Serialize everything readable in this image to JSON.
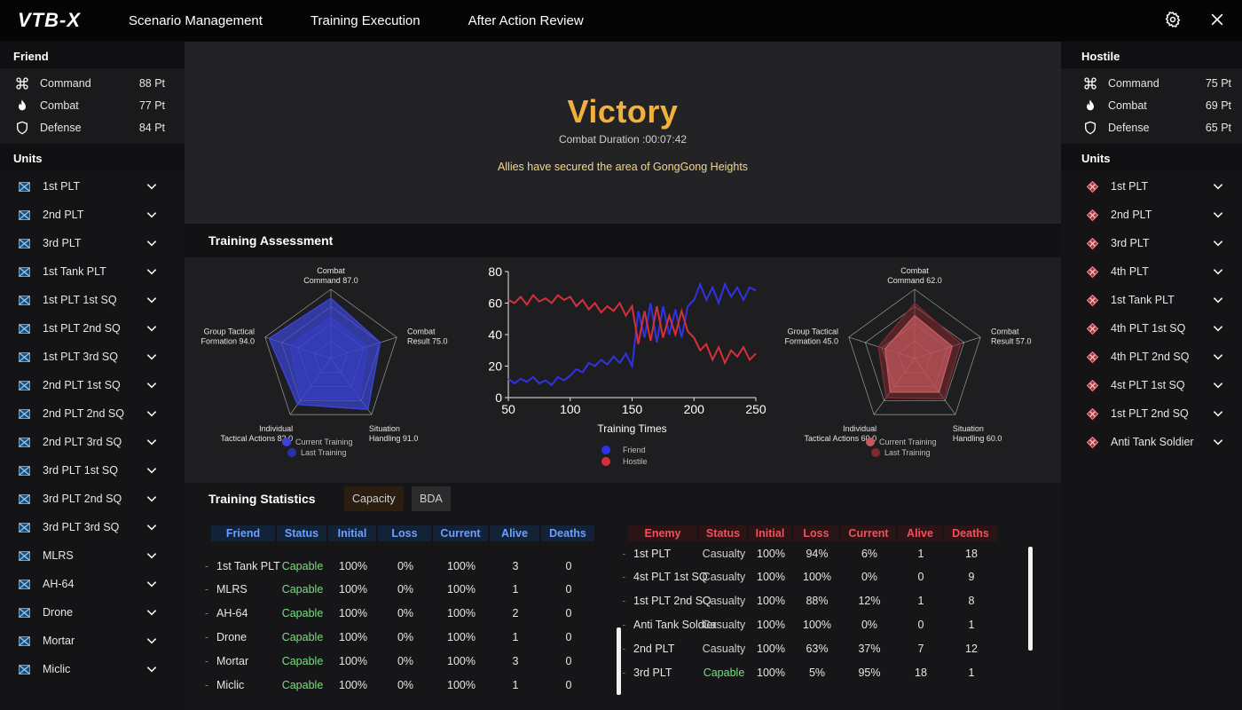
{
  "app": {
    "logo": "VTB-X",
    "nav": [
      "Scenario Management",
      "Training Execution",
      "After Action Review"
    ]
  },
  "friend": {
    "title": "Friend",
    "points": [
      {
        "label": "Command",
        "value": "88 Pt",
        "icon": "command-icon"
      },
      {
        "label": "Combat",
        "value": "77 Pt",
        "icon": "flame-icon"
      },
      {
        "label": "Defense",
        "value": "84 Pt",
        "icon": "shield-icon"
      }
    ],
    "units_title": "Units",
    "units": [
      "1st PLT",
      "2nd PLT",
      "3rd PLT",
      "1st Tank PLT",
      "1st PLT 1st SQ",
      "1st PLT 2nd SQ",
      "1st PLT 3rd SQ",
      "2nd PLT 1st SQ",
      "2nd PLT 2nd SQ",
      "2nd PLT 3rd SQ",
      "3rd PLT 1st SQ",
      "3rd PLT 2nd SQ",
      "3rd PLT 3rd SQ",
      "MLRS",
      "AH-64",
      "Drone",
      "Mortar",
      "Miclic"
    ]
  },
  "hostile": {
    "title": "Hostile",
    "points": [
      {
        "label": "Command",
        "value": "75 Pt",
        "icon": "command-icon"
      },
      {
        "label": "Combat",
        "value": "69 Pt",
        "icon": "flame-icon"
      },
      {
        "label": "Defense",
        "value": "65 Pt",
        "icon": "shield-icon"
      }
    ],
    "units_title": "Units",
    "units": [
      "1st PLT",
      "2nd PLT",
      "3rd PLT",
      "4th PLT",
      "1st Tank PLT",
      "4th PLT 1st SQ",
      "4th PLT 2nd SQ",
      "4st PLT 1st SQ",
      "1st PLT 2nd SQ",
      "Anti Tank Soldier"
    ]
  },
  "result": {
    "title": "Victory",
    "duration": "Combat Duration :00:07:42",
    "message": "Allies have secured the area of GongGong Heights"
  },
  "assessment": {
    "title": "Training Assessment",
    "friend_radar": {
      "axes": [
        {
          "line1": "Combat",
          "line2": "Command  87.0"
        },
        {
          "line1": "Combat",
          "line2": "Result  75.0"
        },
        {
          "line1": "Situation",
          "line2": "Handling  91.0"
        },
        {
          "line1": "Individual",
          "line2": "Tactical Actions  82.0"
        },
        {
          "line1": "Group Tactical",
          "line2": "Formation  94.0"
        }
      ],
      "current": [
        87,
        75,
        91,
        82,
        94
      ],
      "last": [
        60,
        55,
        70,
        72,
        62
      ],
      "legend": [
        "Current Training",
        "Last Training"
      ],
      "colors": {
        "current": "#3b44d6",
        "last": "#2b30a8"
      }
    },
    "hostile_radar": {
      "axes": [
        {
          "line1": "Combat",
          "line2": "Command  62.0"
        },
        {
          "line1": "Combat",
          "line2": "Result  57.0"
        },
        {
          "line1": "Situation",
          "line2": "Handling  60.0"
        },
        {
          "line1": "Individual",
          "line2": "Tactical Actions  60.0"
        },
        {
          "line1": "Group Tactical",
          "line2": "Formation  45.0"
        }
      ],
      "current": [
        62,
        57,
        60,
        60,
        45
      ],
      "last": [
        80,
        70,
        72,
        70,
        55
      ],
      "legend": [
        "Current Training",
        "Last Training"
      ],
      "colors": {
        "current": "#c75a5f",
        "last": "#7d2a2e"
      }
    }
  },
  "chart_data": {
    "type": "line",
    "title": "",
    "xlabel": "Training Times",
    "ylabel": "",
    "xlim": [
      50,
      250
    ],
    "ylim": [
      0,
      80
    ],
    "xticks": [
      50,
      100,
      150,
      200,
      250
    ],
    "yticks": [
      0,
      20,
      40,
      60,
      80
    ],
    "series": [
      {
        "name": "Friend",
        "color": "#2f33e6",
        "x": [
          50,
          55,
          60,
          65,
          70,
          75,
          80,
          85,
          90,
          95,
          100,
          105,
          110,
          115,
          120,
          125,
          130,
          135,
          140,
          145,
          150,
          155,
          160,
          165,
          170,
          175,
          180,
          185,
          190,
          195,
          200,
          205,
          210,
          215,
          220,
          225,
          230,
          235,
          240,
          245,
          250
        ],
        "y": [
          12,
          9,
          12,
          10,
          13,
          9,
          11,
          8,
          13,
          11,
          14,
          18,
          16,
          22,
          20,
          24,
          21,
          26,
          22,
          28,
          20,
          55,
          38,
          60,
          35,
          58,
          40,
          56,
          38,
          58,
          62,
          72,
          62,
          70,
          60,
          72,
          64,
          70,
          62,
          70,
          68
        ]
      },
      {
        "name": "Hostile",
        "color": "#d5303a",
        "x": [
          50,
          55,
          60,
          65,
          70,
          75,
          80,
          85,
          90,
          95,
          100,
          105,
          110,
          115,
          120,
          125,
          130,
          135,
          140,
          145,
          150,
          155,
          160,
          165,
          170,
          175,
          180,
          185,
          190,
          195,
          200,
          205,
          210,
          215,
          220,
          225,
          230,
          235,
          240,
          245,
          250
        ],
        "y": [
          62,
          60,
          64,
          59,
          65,
          61,
          63,
          60,
          65,
          62,
          64,
          58,
          62,
          56,
          60,
          54,
          58,
          55,
          60,
          52,
          58,
          34,
          55,
          36,
          58,
          38,
          52,
          40,
          55,
          42,
          38,
          30,
          34,
          24,
          32,
          22,
          30,
          26,
          32,
          24,
          28
        ]
      }
    ]
  },
  "statistics": {
    "title": "Training Statistics",
    "tabs": [
      "Capacity",
      "BDA"
    ],
    "friend_columns": [
      "Friend",
      "Status",
      "Initial",
      "Loss",
      "Current",
      "Alive",
      "Deaths"
    ],
    "friend_rows": [
      {
        "name": "1st Tank PLT",
        "status": "Capable",
        "initial": "100%",
        "loss": "0%",
        "current": "100%",
        "alive": "3",
        "deaths": "0"
      },
      {
        "name": "MLRS",
        "status": "Capable",
        "initial": "100%",
        "loss": "0%",
        "current": "100%",
        "alive": "1",
        "deaths": "0"
      },
      {
        "name": "AH-64",
        "status": "Capable",
        "initial": "100%",
        "loss": "0%",
        "current": "100%",
        "alive": "2",
        "deaths": "0"
      },
      {
        "name": "Drone",
        "status": "Capable",
        "initial": "100%",
        "loss": "0%",
        "current": "100%",
        "alive": "1",
        "deaths": "0"
      },
      {
        "name": "Mortar",
        "status": "Capable",
        "initial": "100%",
        "loss": "0%",
        "current": "100%",
        "alive": "3",
        "deaths": "0"
      },
      {
        "name": "Miclic",
        "status": "Capable",
        "initial": "100%",
        "loss": "0%",
        "current": "100%",
        "alive": "1",
        "deaths": "0"
      }
    ],
    "enemy_columns": [
      "Enemy",
      "Status",
      "Initial",
      "Loss",
      "Current",
      "Alive",
      "Deaths"
    ],
    "enemy_rows": [
      {
        "name": "1st PLT",
        "status": "Casualty",
        "initial": "100%",
        "loss": "94%",
        "current": "6%",
        "alive": "1",
        "deaths": "18"
      },
      {
        "name": "4st PLT 1st SQ",
        "status": "Casualty",
        "initial": "100%",
        "loss": "100%",
        "current": "0%",
        "alive": "0",
        "deaths": "9"
      },
      {
        "name": "1st PLT 2nd SQ",
        "status": "Casualty",
        "initial": "100%",
        "loss": "88%",
        "current": "12%",
        "alive": "1",
        "deaths": "8"
      },
      {
        "name": "Anti Tank Soldier",
        "status": "Casualty",
        "initial": "100%",
        "loss": "100%",
        "current": "0%",
        "alive": "0",
        "deaths": "1"
      },
      {
        "name": "2nd PLT",
        "status": "Casualty",
        "initial": "100%",
        "loss": "63%",
        "current": "37%",
        "alive": "7",
        "deaths": "12"
      },
      {
        "name": "3rd PLT",
        "status": "Capable",
        "initial": "100%",
        "loss": "5%",
        "current": "95%",
        "alive": "18",
        "deaths": "1"
      }
    ]
  }
}
